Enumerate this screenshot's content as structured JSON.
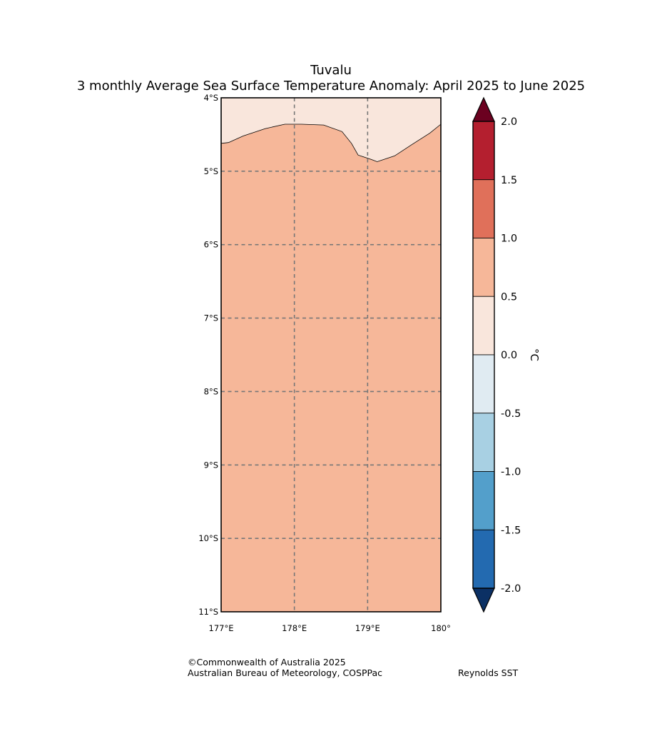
{
  "header": {
    "title": "Tuvalu",
    "subtitle": "3 monthly Average Sea Surface Temperature Anomaly: April 2025 to June 2025"
  },
  "map": {
    "lat_labels": [
      "4°S",
      "5°S",
      "6°S",
      "7°S",
      "8°S",
      "9°S",
      "10°S",
      "11°S"
    ],
    "lon_labels": [
      "177°E",
      "178°E",
      "179°E",
      "180°"
    ],
    "lat_range": [
      -11,
      -4
    ],
    "lon_range": [
      177,
      180
    ],
    "gridlines": "dashed",
    "fill_colors": {
      "band_0_to_0_5": "#f9e6dc",
      "band_0_5_to_1_0": "#f6b799"
    },
    "contour_0_5": [
      [
        177.0,
        -4.62
      ],
      [
        177.1,
        -4.61
      ],
      [
        177.3,
        -4.52
      ],
      [
        177.6,
        -4.42
      ],
      [
        177.87,
        -4.36
      ],
      [
        178.1,
        -4.36
      ],
      [
        178.4,
        -4.37
      ],
      [
        178.65,
        -4.46
      ],
      [
        178.78,
        -4.62
      ],
      [
        178.87,
        -4.78
      ],
      [
        179.05,
        -4.84
      ],
      [
        179.13,
        -4.87
      ],
      [
        179.37,
        -4.79
      ],
      [
        179.6,
        -4.64
      ],
      [
        179.85,
        -4.48
      ],
      [
        180.0,
        -4.36
      ]
    ]
  },
  "colorbar": {
    "unit": "°C",
    "ticks": [
      "2.0",
      "1.5",
      "1.0",
      "0.5",
      "0.0",
      "-0.5",
      "-1.0",
      "-1.5",
      "-2.0"
    ],
    "levels": [
      {
        "from": 1.5,
        "to": 2.0,
        "color": "#b41f2f"
      },
      {
        "from": 1.0,
        "to": 1.5,
        "color": "#e0705a"
      },
      {
        "from": 0.5,
        "to": 1.0,
        "color": "#f6b799"
      },
      {
        "from": 0.0,
        "to": 0.5,
        "color": "#f9e6dc"
      },
      {
        "from": -0.5,
        "to": 0.0,
        "color": "#e0ebf2"
      },
      {
        "from": -1.0,
        "to": -0.5,
        "color": "#a8d0e3"
      },
      {
        "from": -1.5,
        "to": -1.0,
        "color": "#539fcb"
      },
      {
        "from": -2.0,
        "to": -1.5,
        "color": "#236ab0"
      }
    ],
    "over_color": "#6b0120",
    "under_color": "#0b3064"
  },
  "credits": {
    "copyright": "©Commonwealth of Australia 2025",
    "agency": "Australian Bureau of Meteorology, COSPPac",
    "dataset": "Reynolds SST"
  }
}
